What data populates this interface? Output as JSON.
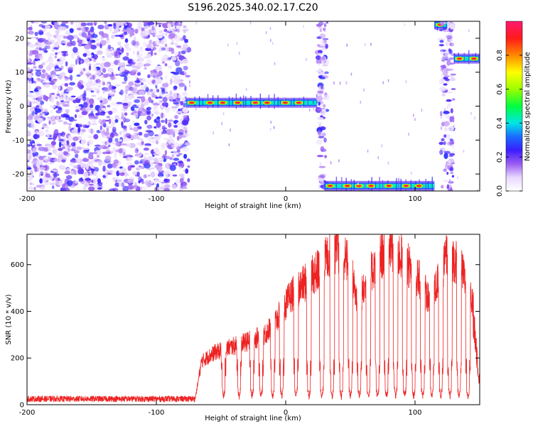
{
  "title": "S196.2025.340.02.17.C20",
  "chart_data": [
    {
      "type": "heatmap",
      "name": "spectrogram",
      "xlabel": "Height of straight line (km)",
      "ylabel": "Frequency (Hz)",
      "xlim": [
        -200,
        150
      ],
      "ylim": [
        -25,
        25
      ],
      "xticks": [
        -200,
        -100,
        0,
        100
      ],
      "yticks": [
        -20,
        -10,
        0,
        10,
        20
      ],
      "colorbar": {
        "label": "Normalized spectral amplitude",
        "range": [
          0,
          1
        ],
        "ticks": [
          0.0,
          0.2,
          0.4,
          0.6,
          0.8
        ]
      },
      "regions": [
        {
          "label": "noise",
          "x_range": [
            -200,
            -75
          ],
          "freq_range": [
            -25,
            25
          ]
        },
        {
          "label": "carrier",
          "x_range": [
            -77,
            25
          ],
          "freq_hz": 1.0
        },
        {
          "label": "noise",
          "x_range": [
            25,
            32
          ],
          "freq_range": [
            -25,
            25
          ]
        },
        {
          "label": "carrier",
          "x_range": [
            30,
            115
          ],
          "freq_hz": -23.5
        },
        {
          "label": "carrier",
          "x_range": [
            115,
            125
          ],
          "freq_hz": 24.0
        },
        {
          "label": "noise",
          "x_range": [
            120,
            130
          ],
          "freq_range": [
            -25,
            25
          ]
        },
        {
          "label": "carrier",
          "x_range": [
            130,
            150
          ],
          "freq_hz": 14.0
        }
      ]
    },
    {
      "type": "line",
      "name": "snr",
      "xlabel": "Height of straight line (km)",
      "ylabel": "SNR (10 * v/v)",
      "xlim": [
        -200,
        150
      ],
      "ylim": [
        0,
        730
      ],
      "xticks": [
        -200,
        -100,
        0,
        100
      ],
      "yticks": [
        0,
        200,
        400,
        600
      ],
      "color": "#ee2222",
      "envelope": {
        "x": [
          -200,
          -70,
          -65,
          -55,
          -45,
          -35,
          -25,
          -15,
          -5,
          5,
          15,
          25,
          35,
          40,
          45,
          50,
          55,
          60,
          70,
          80,
          90,
          100,
          105,
          110,
          115,
          125,
          135,
          145,
          150
        ],
        "y": [
          25,
          25,
          200,
          240,
          260,
          280,
          300,
          330,
          410,
          510,
          560,
          620,
          700,
          720,
          680,
          640,
          480,
          520,
          660,
          720,
          680,
          600,
          560,
          500,
          520,
          700,
          640,
          450,
          100
        ]
      },
      "dips": [
        -48,
        -36,
        -26,
        -19,
        -10,
        -3,
        8,
        18,
        28,
        36,
        43,
        50,
        57,
        64,
        71,
        78,
        85,
        92,
        99,
        106,
        113,
        120,
        127,
        134,
        141
      ]
    }
  ]
}
